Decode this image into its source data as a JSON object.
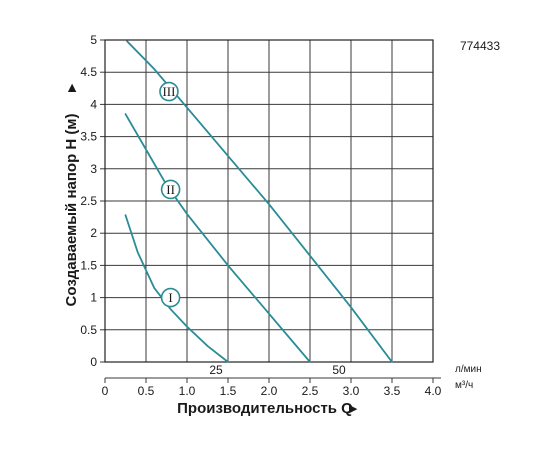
{
  "chart_data": {
    "type": "line",
    "code": "774433",
    "ylabel": "Создаваемый напор H (м)",
    "xlabel": "Производительность Q",
    "ylim": [
      0,
      5
    ],
    "xlim": [
      0,
      4
    ],
    "y_ticks": [
      "0",
      "0.5",
      "1",
      "1.5",
      "2",
      "2.5",
      "3",
      "3.5",
      "4",
      "4.5",
      "5"
    ],
    "x_ticks": [
      "0",
      "0.5",
      "1.0",
      "1.5",
      "2.0",
      "2.5",
      "3.0",
      "3.5",
      "4.0"
    ],
    "x_ticks_lpm": [
      "25",
      "50"
    ],
    "unit_lpm": "л/мин",
    "unit_m3h": "м³/ч",
    "grid": true,
    "curve_color": "#2a8c96",
    "series": [
      {
        "name": "I",
        "x": [
          0.25,
          0.4,
          0.6,
          0.8,
          1.0,
          1.25,
          1.5
        ],
        "y": [
          2.28,
          1.7,
          1.15,
          0.82,
          0.55,
          0.25,
          0.0
        ]
      },
      {
        "name": "II",
        "x": [
          0.25,
          0.5,
          0.75,
          1.0,
          1.5,
          2.0,
          2.5
        ],
        "y": [
          3.85,
          3.3,
          2.75,
          2.3,
          1.5,
          0.75,
          0.0
        ]
      },
      {
        "name": "III",
        "x": [
          0.27,
          0.6,
          1.0,
          1.5,
          2.0,
          2.5,
          3.0,
          3.5
        ],
        "y": [
          4.98,
          4.55,
          3.95,
          3.2,
          2.45,
          1.65,
          0.85,
          0.0
        ]
      }
    ]
  }
}
